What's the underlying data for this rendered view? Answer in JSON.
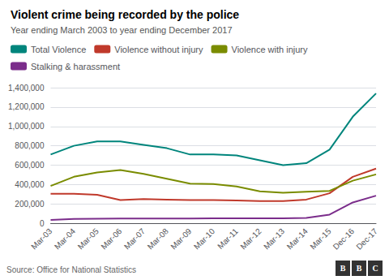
{
  "chart_data": {
    "type": "line",
    "title": "Violent crime being recorded by the police",
    "subtitle": "Year ending March 2003 to year ending December 2017",
    "source": "Source: Office for National Statistics",
    "annotations": [
      "B",
      "B",
      "C"
    ],
    "categories": [
      "Mar-03",
      "Mar-04",
      "Mar-05",
      "Mar-06",
      "Mar-07",
      "Mar-08",
      "Mar-09",
      "Mar-10",
      "Mar-11",
      "Mar-12",
      "Mar-13",
      "Mar-14",
      "Mar-15",
      "Dec-16",
      "Dec-17"
    ],
    "series": [
      {
        "name": "Total Violence",
        "color": "#00857c",
        "values": [
          710000,
          800000,
          845000,
          845000,
          810000,
          775000,
          710000,
          710000,
          700000,
          650000,
          600000,
          620000,
          760000,
          1100000,
          1340000
        ]
      },
      {
        "name": "Violence without injury",
        "color": "#c0392b",
        "values": [
          305000,
          305000,
          295000,
          240000,
          250000,
          245000,
          240000,
          240000,
          235000,
          230000,
          230000,
          245000,
          310000,
          480000,
          565000
        ]
      },
      {
        "name": "Violence with injury",
        "color": "#7a8c00",
        "values": [
          385000,
          480000,
          525000,
          550000,
          510000,
          460000,
          410000,
          405000,
          380000,
          330000,
          315000,
          325000,
          335000,
          440000,
          505000
        ]
      },
      {
        "name": "Stalking & harassment",
        "color": "#7b2d8b",
        "values": [
          35000,
          45000,
          48000,
          50000,
          50000,
          50000,
          50000,
          52000,
          52000,
          52000,
          52000,
          55000,
          90000,
          215000,
          285000
        ]
      }
    ],
    "ylim": [
      0,
      1400000
    ],
    "yticks": [
      0,
      {
        "value": 200000,
        "label": "200,000"
      },
      {
        "value": 400000,
        "label": "400,000"
      },
      {
        "value": 600000,
        "label": "600,000"
      },
      {
        "value": 800000,
        "label": "800,000"
      },
      {
        "value": 1000000,
        "label": "1,000,000"
      },
      {
        "value": 1200000,
        "label": "1,200,000"
      },
      {
        "value": 1400000,
        "label": "1,400,000"
      }
    ],
    "grid": true,
    "legend": "top"
  }
}
